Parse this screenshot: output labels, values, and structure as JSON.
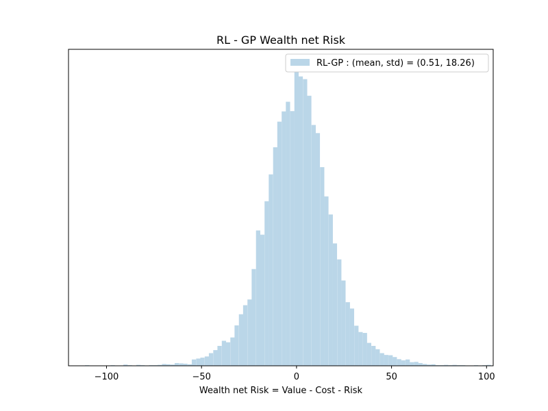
{
  "chart_data": {
    "type": "bar",
    "title": "RL - GP Wealth net Risk",
    "xlabel": "Wealth net Risk = Value - Cost - Risk",
    "ylabel": "",
    "xlim": [
      -120,
      103.5
    ],
    "ylim": [
      0,
      1.05
    ],
    "x_ticks": [
      -100,
      -50,
      0,
      50,
      100
    ],
    "x_tick_labels": [
      "−100",
      "−50",
      "0",
      "50",
      "100"
    ],
    "show_y_ticks": false,
    "grid": false,
    "color": "#bad6e8",
    "legend": {
      "placement": "top-right",
      "entries": [
        "RL-GP : (mean, std) = (0.51, 18.26)"
      ]
    },
    "bin_width": 2.25,
    "bins": [
      {
        "x": -110.2,
        "y": 0.002
      },
      {
        "x": -107.9,
        "y": 0.001
      },
      {
        "x": -105.7,
        "y": 0.0
      },
      {
        "x": -103.4,
        "y": 0.001
      },
      {
        "x": -101.2,
        "y": 0.0
      },
      {
        "x": -98.9,
        "y": 0.001
      },
      {
        "x": -96.7,
        "y": 0.002
      },
      {
        "x": -94.5,
        "y": 0.0
      },
      {
        "x": -92.2,
        "y": 0.001
      },
      {
        "x": -90.0,
        "y": 0.004
      },
      {
        "x": -87.7,
        "y": 0.002
      },
      {
        "x": -85.5,
        "y": 0.001
      },
      {
        "x": -83.2,
        "y": 0.003
      },
      {
        "x": -81.0,
        "y": 0.002
      },
      {
        "x": -78.7,
        "y": 0.001
      },
      {
        "x": -76.5,
        "y": 0.002
      },
      {
        "x": -74.2,
        "y": 0.002
      },
      {
        "x": -72.0,
        "y": 0.003
      },
      {
        "x": -69.7,
        "y": 0.006
      },
      {
        "x": -67.5,
        "y": 0.005
      },
      {
        "x": -65.2,
        "y": 0.004
      },
      {
        "x": -63.0,
        "y": 0.009
      },
      {
        "x": -60.7,
        "y": 0.008
      },
      {
        "x": -58.5,
        "y": 0.007
      },
      {
        "x": -56.2,
        "y": 0.005
      },
      {
        "x": -54.0,
        "y": 0.021
      },
      {
        "x": -51.7,
        "y": 0.024
      },
      {
        "x": -49.5,
        "y": 0.027
      },
      {
        "x": -47.2,
        "y": 0.031
      },
      {
        "x": -45.0,
        "y": 0.042
      },
      {
        "x": -42.7,
        "y": 0.052
      },
      {
        "x": -40.5,
        "y": 0.066
      },
      {
        "x": -38.2,
        "y": 0.083
      },
      {
        "x": -36.0,
        "y": 0.078
      },
      {
        "x": -33.7,
        "y": 0.094
      },
      {
        "x": -31.5,
        "y": 0.134
      },
      {
        "x": -29.2,
        "y": 0.171
      },
      {
        "x": -27.0,
        "y": 0.201
      },
      {
        "x": -24.7,
        "y": 0.22
      },
      {
        "x": -22.5,
        "y": 0.321
      },
      {
        "x": -20.2,
        "y": 0.449
      },
      {
        "x": -18.0,
        "y": 0.435
      },
      {
        "x": -15.7,
        "y": 0.546
      },
      {
        "x": -13.5,
        "y": 0.635
      },
      {
        "x": -11.2,
        "y": 0.725
      },
      {
        "x": -9.0,
        "y": 0.81
      },
      {
        "x": -6.7,
        "y": 0.844
      },
      {
        "x": -4.5,
        "y": 0.876
      },
      {
        "x": -2.2,
        "y": 0.845
      },
      {
        "x": 0.0,
        "y": 1.0
      },
      {
        "x": 2.2,
        "y": 0.96
      },
      {
        "x": 4.5,
        "y": 0.951
      },
      {
        "x": 6.7,
        "y": 0.896
      },
      {
        "x": 9.0,
        "y": 0.799
      },
      {
        "x": 11.2,
        "y": 0.772
      },
      {
        "x": 13.5,
        "y": 0.659
      },
      {
        "x": 15.7,
        "y": 0.562
      },
      {
        "x": 18.0,
        "y": 0.502
      },
      {
        "x": 20.2,
        "y": 0.406
      },
      {
        "x": 22.5,
        "y": 0.353
      },
      {
        "x": 24.7,
        "y": 0.283
      },
      {
        "x": 27.0,
        "y": 0.211
      },
      {
        "x": 29.2,
        "y": 0.19
      },
      {
        "x": 31.5,
        "y": 0.133
      },
      {
        "x": 33.7,
        "y": 0.112
      },
      {
        "x": 36.0,
        "y": 0.109
      },
      {
        "x": 38.2,
        "y": 0.076
      },
      {
        "x": 40.5,
        "y": 0.066
      },
      {
        "x": 42.7,
        "y": 0.055
      },
      {
        "x": 45.0,
        "y": 0.042
      },
      {
        "x": 47.2,
        "y": 0.036
      },
      {
        "x": 49.5,
        "y": 0.035
      },
      {
        "x": 51.7,
        "y": 0.029
      },
      {
        "x": 54.0,
        "y": 0.022
      },
      {
        "x": 56.2,
        "y": 0.018
      },
      {
        "x": 58.5,
        "y": 0.021
      },
      {
        "x": 60.7,
        "y": 0.012
      },
      {
        "x": 63.0,
        "y": 0.013
      },
      {
        "x": 65.2,
        "y": 0.009
      },
      {
        "x": 67.5,
        "y": 0.006
      },
      {
        "x": 69.7,
        "y": 0.004
      },
      {
        "x": 72.0,
        "y": 0.005
      },
      {
        "x": 74.2,
        "y": 0.002
      },
      {
        "x": 76.5,
        "y": 0.002
      },
      {
        "x": 78.7,
        "y": 0.003
      },
      {
        "x": 81.0,
        "y": 0.002
      },
      {
        "x": 83.2,
        "y": 0.003
      },
      {
        "x": 85.5,
        "y": 0.002
      },
      {
        "x": 87.7,
        "y": 0.002
      },
      {
        "x": 90.0,
        "y": 0.001
      },
      {
        "x": 92.2,
        "y": 0.001
      },
      {
        "x": 94.5,
        "y": 0.002
      },
      {
        "x": 96.7,
        "y": 0.001
      },
      {
        "x": 98.9,
        "y": 0.002
      },
      {
        "x": 101.2,
        "y": 0.003
      }
    ]
  }
}
